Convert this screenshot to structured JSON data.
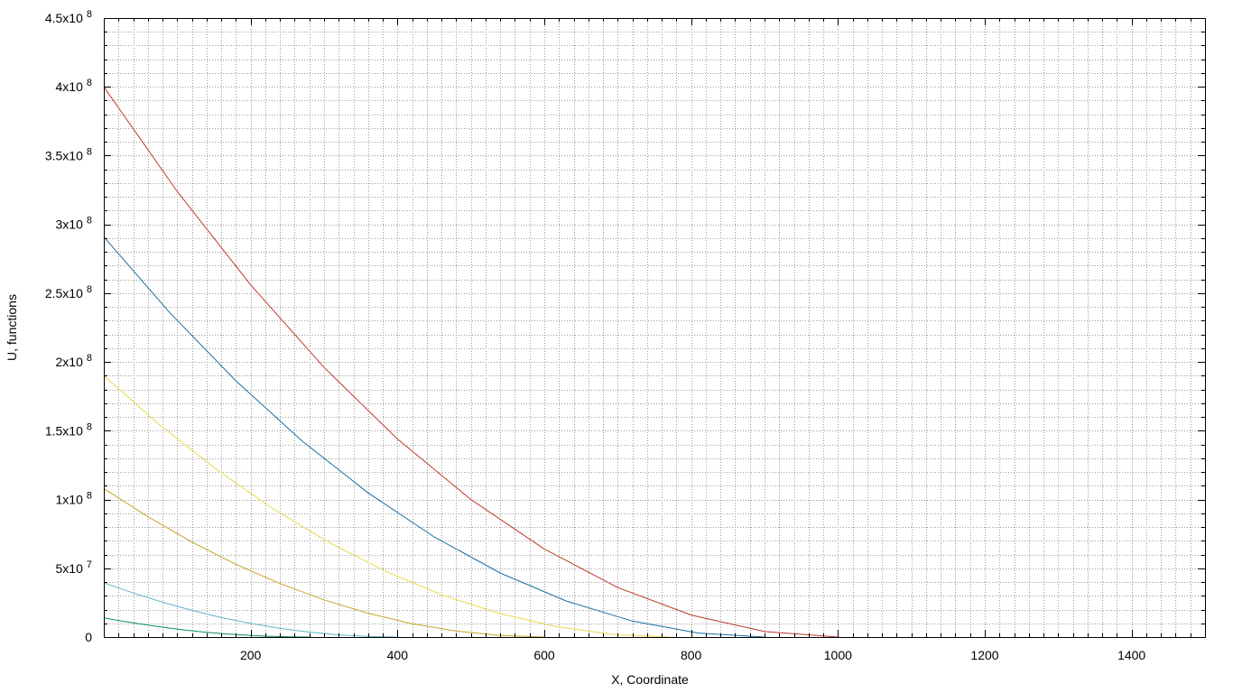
{
  "chart_data": {
    "type": "line",
    "xlabel": "X, Coordinate",
    "ylabel": "U, functions",
    "xlim": [
      0,
      1500
    ],
    "ylim": [
      0,
      450000000
    ],
    "grid": true,
    "legend": "none",
    "x_ticks": [
      {
        "value": 200,
        "label": "200"
      },
      {
        "value": 400,
        "label": "400"
      },
      {
        "value": 600,
        "label": "600"
      },
      {
        "value": 800,
        "label": "800"
      },
      {
        "value": 1000,
        "label": "1000"
      },
      {
        "value": 1200,
        "label": "1200"
      },
      {
        "value": 1400,
        "label": "1400"
      }
    ],
    "y_ticks": [
      {
        "value": 0,
        "mantissa": "0",
        "exponent": ""
      },
      {
        "value": 50000000,
        "mantissa": "5x10",
        "exponent": "7"
      },
      {
        "value": 100000000,
        "mantissa": "1x10",
        "exponent": "8"
      },
      {
        "value": 150000000,
        "mantissa": "1.5x10",
        "exponent": "8"
      },
      {
        "value": 200000000,
        "mantissa": "2x10",
        "exponent": "8"
      },
      {
        "value": 250000000,
        "mantissa": "2.5x10",
        "exponent": "8"
      },
      {
        "value": 300000000,
        "mantissa": "3x10",
        "exponent": "8"
      },
      {
        "value": 350000000,
        "mantissa": "3.5x10",
        "exponent": "8"
      },
      {
        "value": 400000000,
        "mantissa": "4x10",
        "exponent": "8"
      },
      {
        "value": 450000000,
        "mantissa": "4.5x10",
        "exponent": "8"
      }
    ],
    "series": [
      {
        "color": "#c0392b",
        "x": [
          0,
          100,
          200,
          300,
          400,
          500,
          600,
          700,
          800,
          900,
          1000
        ],
        "y": [
          400000000,
          324000000,
          256000000,
          196000000,
          144000000,
          100000000,
          64000000,
          36000000,
          16000000,
          4000000,
          0
        ]
      },
      {
        "color": "#1a6fa0",
        "x": [
          0,
          90,
          180,
          270,
          360,
          450,
          540,
          630,
          720,
          810,
          900
        ],
        "y": [
          291000000,
          235700000,
          186200000,
          142600000,
          104800000,
          72800000,
          46600000,
          26200000,
          11600000,
          2900000,
          0
        ]
      },
      {
        "color": "#e8d94a",
        "x": [
          0,
          77,
          154,
          231,
          308,
          385,
          462,
          539,
          616,
          693,
          770
        ],
        "y": [
          190000000,
          153900000,
          121600000,
          93100000,
          68400000,
          47500000,
          30400000,
          17100000,
          7600000,
          1900000,
          0
        ]
      },
      {
        "color": "#c9a227",
        "x": [
          0,
          60,
          120,
          180,
          240,
          300,
          360,
          420,
          480,
          540,
          600
        ],
        "y": [
          108000000,
          87500000,
          69100000,
          52900000,
          38900000,
          27000000,
          17300000,
          9700000,
          4300000,
          1100000,
          0
        ]
      },
      {
        "color": "#5fb4c9",
        "x": [
          0,
          40,
          80,
          120,
          160,
          200,
          240,
          280,
          320,
          360,
          400
        ],
        "y": [
          39500000,
          32000000,
          25300000,
          19400000,
          14200000,
          9900000,
          6300000,
          3600000,
          1600000,
          400000,
          0
        ]
      },
      {
        "color": "#0e8a6e",
        "x": [
          0,
          28,
          56,
          84,
          112,
          140,
          168,
          196,
          224,
          252,
          280
        ],
        "y": [
          14000000,
          11300000,
          9000000,
          6900000,
          5000000,
          3500000,
          2200000,
          1300000,
          600000,
          100000,
          0
        ]
      }
    ]
  }
}
